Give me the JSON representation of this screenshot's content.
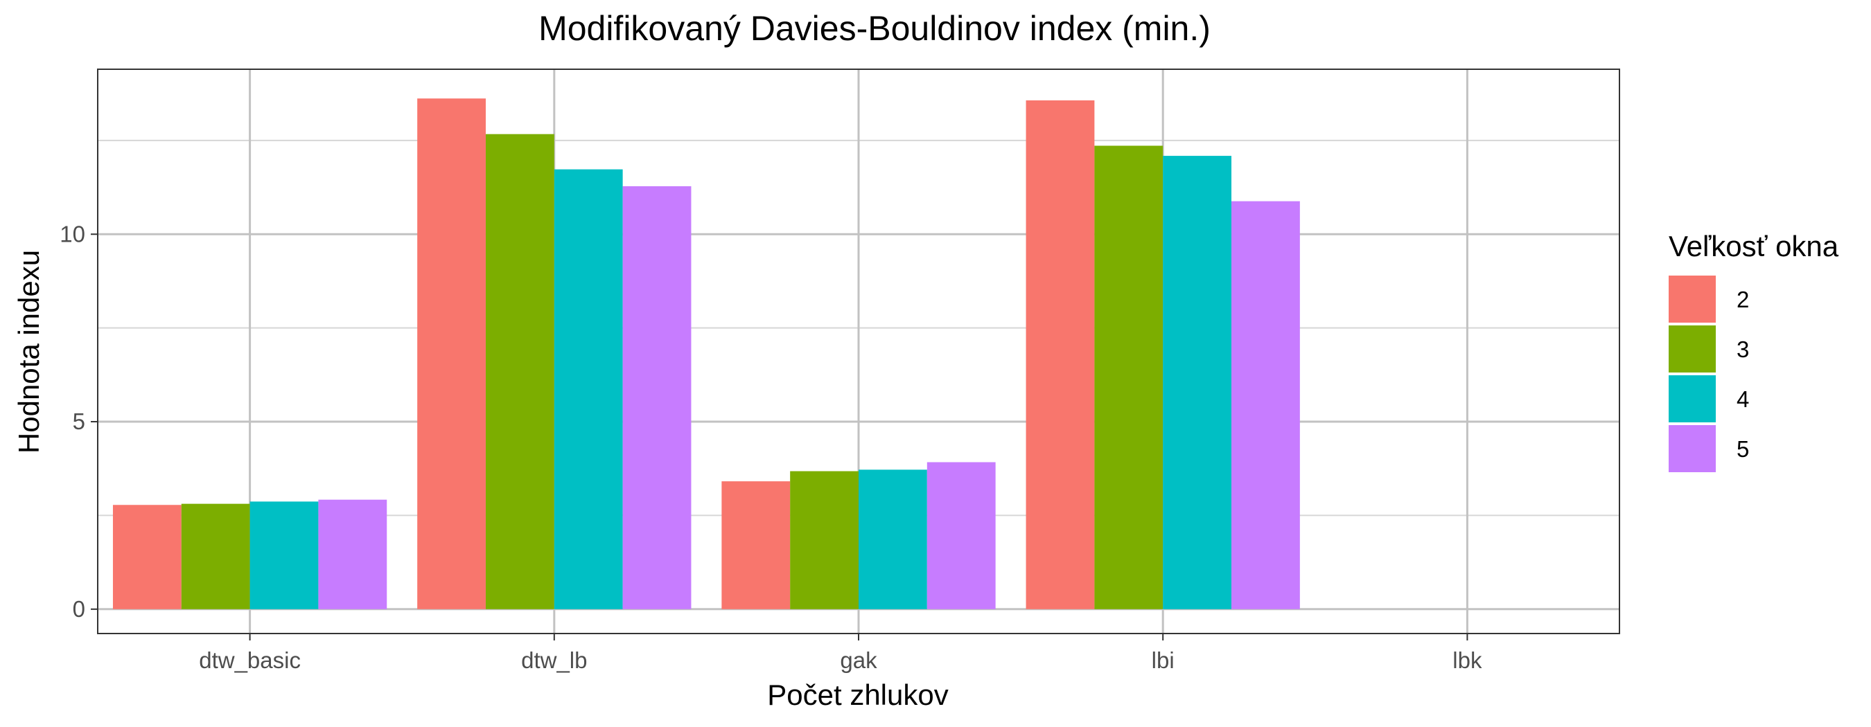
{
  "chart_data": {
    "type": "bar",
    "title": "Modifikovaný Davies-Bouldinov index (min.)",
    "xlabel": "Počet zhlukov",
    "ylabel": "Hodnota indexu",
    "categories": [
      "dtw_basic",
      "dtw_lb",
      "gak",
      "lbi",
      "lbk"
    ],
    "ylim": [
      -0.65,
      14.4
    ],
    "yticks": [
      0,
      5,
      10
    ],
    "grid": true,
    "legend": {
      "title": "Veľkosť okna",
      "placement": "right"
    },
    "series": [
      {
        "name": "2",
        "color": "#F8766D",
        "values": [
          2.78,
          13.62,
          3.41,
          13.57,
          0
        ]
      },
      {
        "name": "3",
        "color": "#7CAE00",
        "values": [
          2.81,
          12.67,
          3.68,
          12.36,
          0
        ]
      },
      {
        "name": "4",
        "color": "#00BFC4",
        "values": [
          2.87,
          11.73,
          3.72,
          12.09,
          0
        ]
      },
      {
        "name": "5",
        "color": "#C77CFF",
        "values": [
          2.92,
          11.28,
          3.92,
          10.88,
          0
        ]
      }
    ]
  }
}
